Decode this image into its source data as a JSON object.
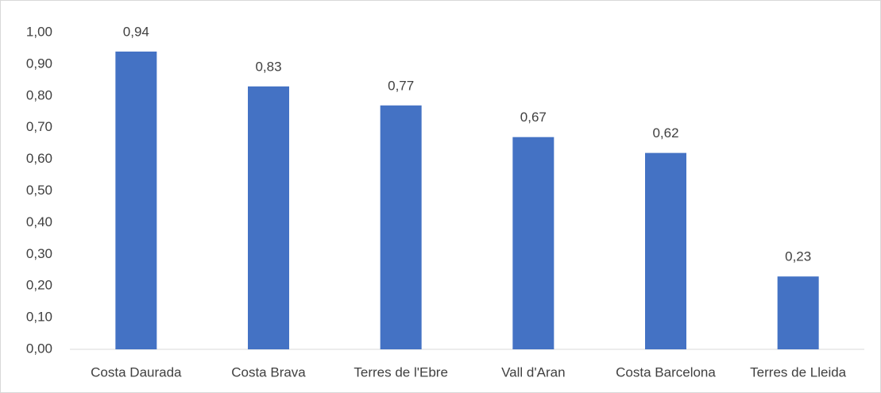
{
  "chart_data": {
    "type": "bar",
    "categories": [
      "Costa Daurada",
      "Costa Brava",
      "Terres de l'Ebre",
      "Vall d'Aran",
      "Costa Barcelona",
      "Terres de Lleida"
    ],
    "values": [
      0.94,
      0.83,
      0.77,
      0.67,
      0.62,
      0.23
    ],
    "value_labels": [
      "0,94",
      "0,83",
      "0,77",
      "0,67",
      "0,62",
      "0,23"
    ],
    "color": "#4472c4",
    "ylim": [
      0,
      1
    ],
    "yticks": [
      {
        "value": 0,
        "label": "0,00"
      },
      {
        "value": 0.1,
        "label": "0,10"
      },
      {
        "value": 0.2,
        "label": "0,20"
      },
      {
        "value": 0.3,
        "label": "0,30"
      },
      {
        "value": 0.4,
        "label": "0,40"
      },
      {
        "value": 0.5,
        "label": "0,50"
      },
      {
        "value": 0.6,
        "label": "0,60"
      },
      {
        "value": 0.7,
        "label": "0,70"
      },
      {
        "value": 0.8,
        "label": "0,80"
      },
      {
        "value": 0.9,
        "label": "0,90"
      },
      {
        "value": 1,
        "label": "1,00"
      }
    ],
    "grid": false
  }
}
